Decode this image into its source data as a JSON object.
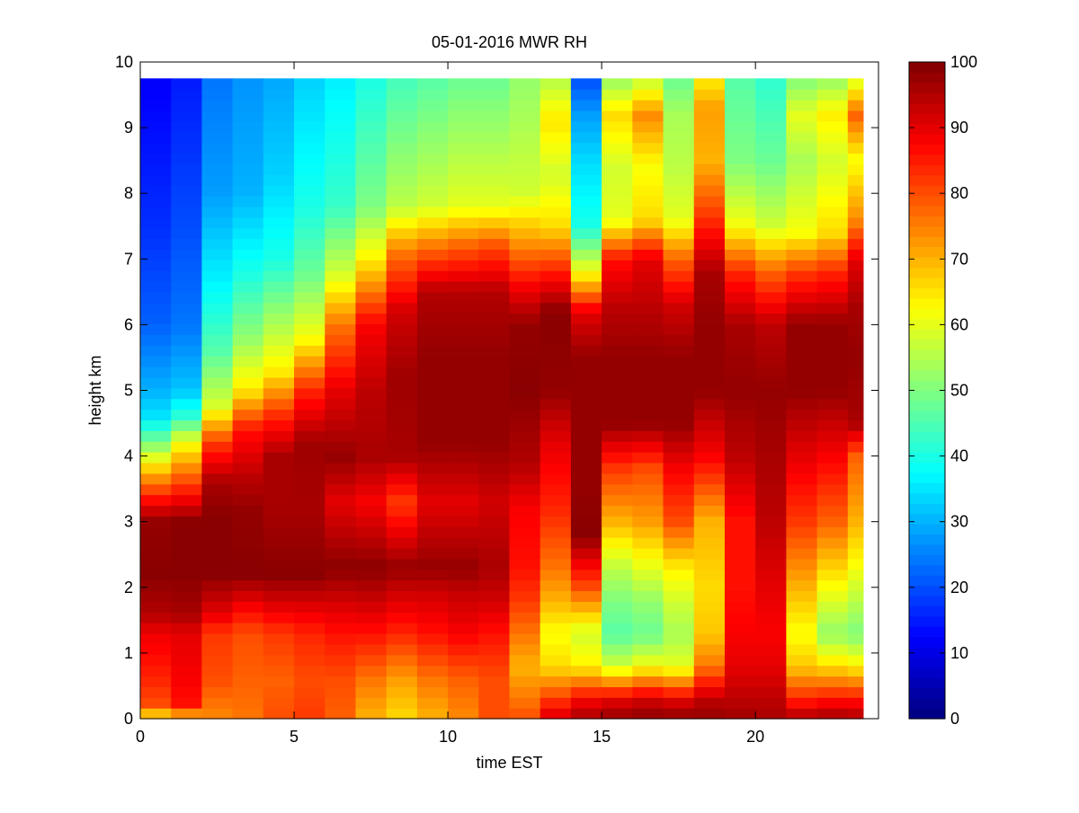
{
  "chart_data": {
    "type": "heatmap",
    "title": "05-01-2016 MWR RH",
    "xlabel": "time EST",
    "ylabel": "height km",
    "xlim": [
      0,
      24
    ],
    "ylim": [
      0,
      10
    ],
    "x_ticks": [
      "0",
      "5",
      "10",
      "15",
      "20"
    ],
    "y_ticks": [
      "0",
      "1",
      "2",
      "3",
      "4",
      "5",
      "6",
      "7",
      "8",
      "9",
      "10"
    ],
    "colorbar": {
      "colormap": "jet",
      "range": [
        0,
        100
      ],
      "ticks": [
        "0",
        "10",
        "20",
        "30",
        "40",
        "50",
        "60",
        "70",
        "80",
        "90",
        "100"
      ]
    },
    "x_centers": [
      0.5,
      1.5,
      2.5,
      3.5,
      4.5,
      5.5,
      6.5,
      7.5,
      8.5,
      9.5,
      10.5,
      11.5,
      12.5,
      13.5,
      14.5,
      15.5,
      16.5,
      17.5,
      18.5,
      19.5,
      20.5,
      21.5,
      22.5,
      23.5
    ],
    "x_max_data": 23.5,
    "y_max_data": 9.75,
    "profiles": [
      [
        [
          0,
          62
        ],
        [
          0.2,
          80
        ],
        [
          0.6,
          84
        ],
        [
          1.3,
          89
        ],
        [
          1.6,
          95
        ],
        [
          2.2,
          99
        ],
        [
          3.0,
          98
        ],
        [
          3.3,
          88
        ],
        [
          3.7,
          72
        ],
        [
          4.2,
          50
        ],
        [
          4.6,
          35
        ],
        [
          5.0,
          30
        ],
        [
          6.0,
          22
        ],
        [
          7.5,
          17
        ],
        [
          9.75,
          12
        ]
      ],
      [
        [
          0,
          66
        ],
        [
          0.2,
          86
        ],
        [
          0.6,
          88
        ],
        [
          1.3,
          90
        ],
        [
          1.6,
          96
        ],
        [
          2.2,
          99
        ],
        [
          3.0,
          99
        ],
        [
          3.3,
          90
        ],
        [
          3.7,
          78
        ],
        [
          4.2,
          62
        ],
        [
          4.6,
          42
        ],
        [
          5.0,
          32
        ],
        [
          6.0,
          24
        ],
        [
          7.5,
          20
        ],
        [
          9.75,
          15
        ]
      ],
      [
        [
          0,
          74
        ],
        [
          0.6,
          80
        ],
        [
          1.3,
          82
        ],
        [
          1.6,
          90
        ],
        [
          2.2,
          99
        ],
        [
          3.1,
          99
        ],
        [
          3.6,
          96
        ],
        [
          4.2,
          82
        ],
        [
          4.8,
          58
        ],
        [
          5.6,
          46
        ],
        [
          6.6,
          37
        ],
        [
          8.0,
          28
        ],
        [
          9.75,
          24
        ]
      ],
      [
        [
          0,
          76
        ],
        [
          0.6,
          78
        ],
        [
          1.3,
          80
        ],
        [
          1.7,
          88
        ],
        [
          2.2,
          99
        ],
        [
          3.2,
          98
        ],
        [
          3.7,
          94
        ],
        [
          4.4,
          86
        ],
        [
          5.0,
          65
        ],
        [
          5.8,
          52
        ],
        [
          6.8,
          40
        ],
        [
          8.0,
          30
        ],
        [
          9.75,
          27
        ]
      ],
      [
        [
          0,
          80
        ],
        [
          0.6,
          78
        ],
        [
          1.3,
          82
        ],
        [
          1.8,
          92
        ],
        [
          2.2,
          99
        ],
        [
          3.2,
          96
        ],
        [
          4.0,
          96
        ],
        [
          4.6,
          84
        ],
        [
          5.3,
          64
        ],
        [
          6.2,
          52
        ],
        [
          7.0,
          40
        ],
        [
          8.3,
          33
        ],
        [
          9.75,
          29
        ]
      ],
      [
        [
          0,
          82
        ],
        [
          0.6,
          80
        ],
        [
          1.3,
          84
        ],
        [
          1.8,
          92
        ],
        [
          2.2,
          99
        ],
        [
          3.2,
          96
        ],
        [
          4.2,
          97
        ],
        [
          5.0,
          84
        ],
        [
          5.8,
          62
        ],
        [
          6.8,
          48
        ],
        [
          7.8,
          40
        ],
        [
          9.75,
          33
        ]
      ],
      [
        [
          0,
          78
        ],
        [
          0.6,
          80
        ],
        [
          1.3,
          86
        ],
        [
          1.8,
          92
        ],
        [
          2.3,
          99
        ],
        [
          3.3,
          90
        ],
        [
          4.0,
          98
        ],
        [
          5.0,
          90
        ],
        [
          6.0,
          76
        ],
        [
          6.8,
          58
        ],
        [
          7.8,
          43
        ],
        [
          9.75,
          36
        ]
      ],
      [
        [
          0,
          70
        ],
        [
          0.6,
          76
        ],
        [
          1.3,
          86
        ],
        [
          1.9,
          94
        ],
        [
          2.3,
          99
        ],
        [
          3.3,
          88
        ],
        [
          4.0,
          96
        ],
        [
          5.0,
          94
        ],
        [
          6.0,
          88
        ],
        [
          7.0,
          64
        ],
        [
          7.8,
          50
        ],
        [
          9.75,
          40
        ]
      ],
      [
        [
          0,
          66
        ],
        [
          0.6,
          72
        ],
        [
          1.3,
          84
        ],
        [
          1.9,
          92
        ],
        [
          2.3,
          98
        ],
        [
          3.3,
          82
        ],
        [
          4.0,
          96
        ],
        [
          5.2,
          97
        ],
        [
          6.2,
          92
        ],
        [
          7.1,
          76
        ],
        [
          7.8,
          56
        ],
        [
          9.75,
          44
        ]
      ],
      [
        [
          0,
          70
        ],
        [
          0.6,
          76
        ],
        [
          1.3,
          86
        ],
        [
          1.9,
          92
        ],
        [
          2.3,
          98
        ],
        [
          3.3,
          90
        ],
        [
          4.2,
          98
        ],
        [
          5.5,
          98
        ],
        [
          6.5,
          95
        ],
        [
          7.2,
          76
        ],
        [
          7.8,
          58
        ],
        [
          9.75,
          46
        ]
      ],
      [
        [
          0,
          74
        ],
        [
          0.6,
          78
        ],
        [
          1.3,
          88
        ],
        [
          1.9,
          93
        ],
        [
          2.3,
          98
        ],
        [
          3.3,
          90
        ],
        [
          4.2,
          98
        ],
        [
          5.5,
          98
        ],
        [
          6.5,
          95
        ],
        [
          7.2,
          78
        ],
        [
          7.8,
          60
        ],
        [
          9.75,
          48
        ]
      ],
      [
        [
          0,
          80
        ],
        [
          0.6,
          80
        ],
        [
          1.3,
          86
        ],
        [
          1.8,
          92
        ],
        [
          2.3,
          96
        ],
        [
          3.3,
          92
        ],
        [
          4.2,
          98
        ],
        [
          5.5,
          98
        ],
        [
          6.5,
          95
        ],
        [
          7.2,
          80
        ],
        [
          7.8,
          60
        ],
        [
          9.75,
          48
        ]
      ],
      [
        [
          0,
          80
        ],
        [
          0.3,
          76
        ],
        [
          0.8,
          70
        ],
        [
          1.3,
          76
        ],
        [
          1.8,
          82
        ],
        [
          2.3,
          86
        ],
        [
          3.2,
          88
        ],
        [
          3.9,
          95
        ],
        [
          5.0,
          99
        ],
        [
          6.0,
          98
        ],
        [
          6.6,
          88
        ],
        [
          7.3,
          72
        ],
        [
          8.0,
          58
        ],
        [
          9.75,
          52
        ]
      ],
      [
        [
          0,
          92
        ],
        [
          0.3,
          82
        ],
        [
          0.8,
          66
        ],
        [
          1.3,
          62
        ],
        [
          1.8,
          70
        ],
        [
          2.3,
          76
        ],
        [
          3.2,
          84
        ],
        [
          4.2,
          90
        ],
        [
          5.0,
          98
        ],
        [
          6.2,
          99
        ],
        [
          6.8,
          85
        ],
        [
          7.5,
          66
        ],
        [
          8.3,
          58
        ],
        [
          9.1,
          65
        ],
        [
          9.75,
          55
        ]
      ],
      [
        [
          0,
          96
        ],
        [
          0.3,
          88
        ],
        [
          0.8,
          64
        ],
        [
          1.3,
          58
        ],
        [
          2.0,
          80
        ],
        [
          2.8,
          99
        ],
        [
          3.5,
          98
        ],
        [
          4.5,
          98
        ],
        [
          5.5,
          98
        ],
        [
          6.2,
          90
        ],
        [
          6.8,
          62
        ],
        [
          7.5,
          40
        ],
        [
          8.5,
          34
        ],
        [
          9.2,
          28
        ],
        [
          9.75,
          20
        ]
      ],
      [
        [
          0,
          98
        ],
        [
          0.3,
          90
        ],
        [
          0.8,
          58
        ],
        [
          1.3,
          46
        ],
        [
          1.8,
          50
        ],
        [
          2.3,
          56
        ],
        [
          3.0,
          70
        ],
        [
          3.8,
          82
        ],
        [
          4.5,
          98
        ],
        [
          5.5,
          98
        ],
        [
          6.3,
          94
        ],
        [
          7.0,
          86
        ],
        [
          7.6,
          60
        ],
        [
          8.4,
          58
        ],
        [
          9.2,
          66
        ],
        [
          9.75,
          52
        ]
      ],
      [
        [
          0,
          99
        ],
        [
          0.3,
          92
        ],
        [
          0.8,
          62
        ],
        [
          1.3,
          48
        ],
        [
          1.8,
          52
        ],
        [
          2.3,
          60
        ],
        [
          3.0,
          72
        ],
        [
          3.8,
          80
        ],
        [
          4.5,
          98
        ],
        [
          5.5,
          98
        ],
        [
          6.3,
          94
        ],
        [
          7.0,
          90
        ],
        [
          7.6,
          66
        ],
        [
          8.4,
          62
        ],
        [
          9.2,
          74
        ],
        [
          9.75,
          56
        ]
      ],
      [
        [
          0,
          99
        ],
        [
          0.3,
          90
        ],
        [
          0.8,
          60
        ],
        [
          1.3,
          54
        ],
        [
          1.8,
          58
        ],
        [
          2.3,
          64
        ],
        [
          3.0,
          80
        ],
        [
          3.8,
          88
        ],
        [
          4.5,
          98
        ],
        [
          5.5,
          98
        ],
        [
          6.3,
          92
        ],
        [
          7.0,
          78
        ],
        [
          7.6,
          60
        ],
        [
          8.4,
          56
        ],
        [
          9.2,
          54
        ],
        [
          9.75,
          48
        ]
      ],
      [
        [
          0,
          98
        ],
        [
          0.3,
          94
        ],
        [
          0.8,
          76
        ],
        [
          1.3,
          68
        ],
        [
          2.0,
          66
        ],
        [
          3.0,
          70
        ],
        [
          4.0,
          88
        ],
        [
          5.0,
          98
        ],
        [
          6.0,
          98
        ],
        [
          6.8,
          96
        ],
        [
          7.3,
          88
        ],
        [
          7.8,
          80
        ],
        [
          8.5,
          70
        ],
        [
          9.3,
          72
        ],
        [
          9.75,
          64
        ]
      ],
      [
        [
          0,
          97
        ],
        [
          0.3,
          94
        ],
        [
          0.8,
          90
        ],
        [
          1.3,
          88
        ],
        [
          2.0,
          86
        ],
        [
          3.0,
          86
        ],
        [
          4.0,
          94
        ],
        [
          5.0,
          98
        ],
        [
          6.0,
          96
        ],
        [
          6.8,
          84
        ],
        [
          7.5,
          62
        ],
        [
          8.5,
          50
        ],
        [
          9.75,
          46
        ]
      ],
      [
        [
          0,
          96
        ],
        [
          0.3,
          94
        ],
        [
          0.8,
          90
        ],
        [
          1.3,
          88
        ],
        [
          2.0,
          90
        ],
        [
          3.0,
          94
        ],
        [
          4.0,
          96
        ],
        [
          5.0,
          98
        ],
        [
          6.0,
          94
        ],
        [
          6.8,
          78
        ],
        [
          7.5,
          58
        ],
        [
          8.5,
          48
        ],
        [
          9.75,
          42
        ]
      ],
      [
        [
          0,
          96
        ],
        [
          0.3,
          84
        ],
        [
          0.8,
          68
        ],
        [
          1.3,
          62
        ],
        [
          2.0,
          70
        ],
        [
          3.0,
          82
        ],
        [
          4.0,
          90
        ],
        [
          5.0,
          98
        ],
        [
          6.0,
          98
        ],
        [
          6.8,
          82
        ],
        [
          7.4,
          62
        ],
        [
          8.5,
          54
        ],
        [
          9.2,
          60
        ],
        [
          9.75,
          50
        ]
      ],
      [
        [
          0,
          97
        ],
        [
          0.3,
          86
        ],
        [
          0.8,
          66
        ],
        [
          1.3,
          52
        ],
        [
          2.0,
          62
        ],
        [
          3.0,
          78
        ],
        [
          4.0,
          88
        ],
        [
          5.0,
          98
        ],
        [
          6.0,
          98
        ],
        [
          6.8,
          84
        ],
        [
          7.4,
          66
        ],
        [
          8.5,
          58
        ],
        [
          9.2,
          64
        ],
        [
          9.75,
          52
        ]
      ],
      [
        [
          0,
          96
        ],
        [
          0.3,
          86
        ],
        [
          0.8,
          64
        ],
        [
          1.3,
          50
        ],
        [
          2.0,
          58
        ],
        [
          3.0,
          70
        ],
        [
          4.0,
          78
        ],
        [
          4.5,
          96
        ],
        [
          5.5,
          98
        ],
        [
          6.3,
          96
        ],
        [
          7.0,
          90
        ],
        [
          7.6,
          74
        ],
        [
          8.5,
          62
        ],
        [
          9.2,
          78
        ],
        [
          9.75,
          58
        ]
      ]
    ]
  }
}
